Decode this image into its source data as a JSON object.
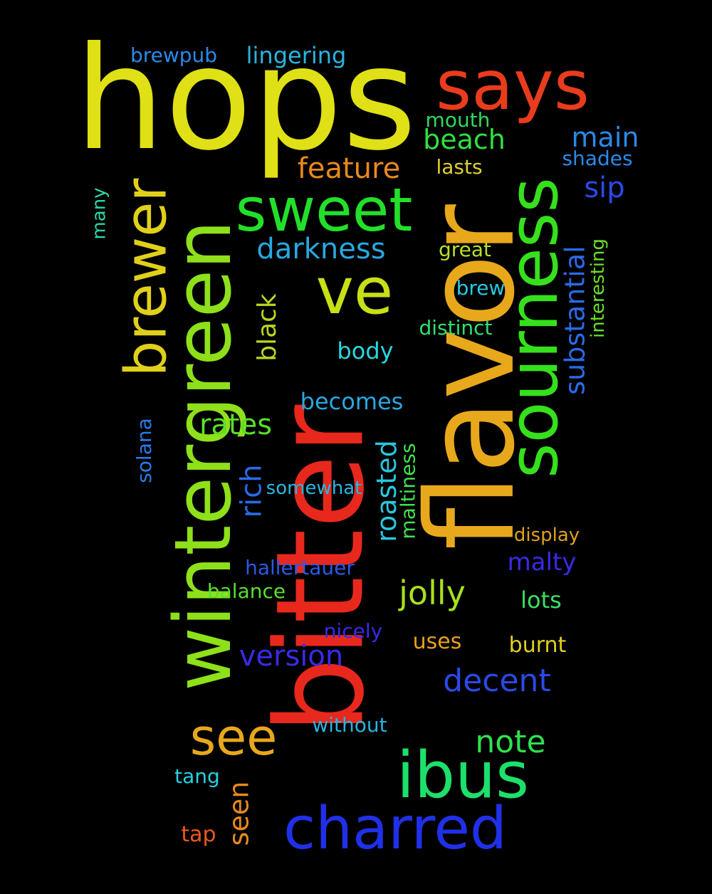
{
  "words": [
    {
      "id": "hops",
      "text": "hops",
      "color": "#e0e016",
      "rotated": false
    },
    {
      "id": "says",
      "text": "says",
      "color": "#e83c1c",
      "rotated": false
    },
    {
      "id": "flavor",
      "text": "flavor",
      "color": "#e8a81c",
      "rotated": true
    },
    {
      "id": "bitter",
      "text": "bitter",
      "color": "#e8281c",
      "rotated": true
    },
    {
      "id": "wintergreen",
      "text": "wintergreen",
      "color": "#8ee01a",
      "rotated": true
    },
    {
      "id": "sourness",
      "text": "sourness",
      "color": "#36e01c",
      "rotated": true
    },
    {
      "id": "brewer",
      "text": "brewer",
      "color": "#e0d01a",
      "rotated": true
    },
    {
      "id": "sweet",
      "text": "sweet",
      "color": "#22e02a",
      "rotated": false
    },
    {
      "id": "ve",
      "text": "ve",
      "color": "#c8e016",
      "rotated": false
    },
    {
      "id": "ibus",
      "text": "ibus",
      "color": "#1ce06a",
      "rotated": false
    },
    {
      "id": "charred",
      "text": "charred",
      "color": "#2030e8",
      "rotated": false
    },
    {
      "id": "see",
      "text": "see",
      "color": "#e8a81c",
      "rotated": false
    },
    {
      "id": "feature",
      "text": "feature",
      "color": "#e88a1c",
      "rotated": false
    },
    {
      "id": "beach",
      "text": "beach",
      "color": "#30e040",
      "rotated": false
    },
    {
      "id": "main",
      "text": "main",
      "color": "#2a8ae8",
      "rotated": false
    },
    {
      "id": "darkness",
      "text": "darkness",
      "color": "#28a8e0",
      "rotated": false
    },
    {
      "id": "substantial",
      "text": "substantial",
      "color": "#2a6ae8",
      "rotated": true
    },
    {
      "id": "interesting",
      "text": "interesting",
      "color": "#6ae028",
      "rotated": true
    },
    {
      "id": "brewpub",
      "text": "brewpub",
      "color": "#2a8ae8",
      "rotated": false
    },
    {
      "id": "lingering",
      "text": "lingering",
      "color": "#2ab4e0",
      "rotated": false
    },
    {
      "id": "mouth",
      "text": "mouth",
      "color": "#30d860",
      "rotated": false
    },
    {
      "id": "lasts",
      "text": "lasts",
      "color": "#e0d030",
      "rotated": false
    },
    {
      "id": "shades",
      "text": "shades",
      "color": "#2a8ae8",
      "rotated": false
    },
    {
      "id": "sip",
      "text": "sip",
      "color": "#2a4ae8",
      "rotated": false
    },
    {
      "id": "many",
      "text": "many",
      "color": "#2ad8a8",
      "rotated": true
    },
    {
      "id": "great",
      "text": "great",
      "color": "#b8e028",
      "rotated": false
    },
    {
      "id": "brew",
      "text": "brew",
      "color": "#28c8e0",
      "rotated": false
    },
    {
      "id": "black",
      "text": "black",
      "color": "#b8d820",
      "rotated": true
    },
    {
      "id": "distinct",
      "text": "distinct",
      "color": "#30e070",
      "rotated": false
    },
    {
      "id": "body",
      "text": "body",
      "color": "#28d8e0",
      "rotated": false
    },
    {
      "id": "becomes",
      "text": "becomes",
      "color": "#28a8e0",
      "rotated": false
    },
    {
      "id": "rates",
      "text": "rates",
      "color": "#58e028",
      "rotated": false
    },
    {
      "id": "solana",
      "text": "solana",
      "color": "#2a7ae8",
      "rotated": true
    },
    {
      "id": "rich",
      "text": "rich",
      "color": "#2a6ae8",
      "rotated": true
    },
    {
      "id": "roasted",
      "text": "roasted",
      "color": "#28c8e0",
      "rotated": true
    },
    {
      "id": "maltiness",
      "text": "maltiness",
      "color": "#40e050",
      "rotated": true
    },
    {
      "id": "somewhat",
      "text": "somewhat",
      "color": "#28b8e0",
      "rotated": false
    },
    {
      "id": "display",
      "text": "display",
      "color": "#e0a020",
      "rotated": false
    },
    {
      "id": "malty",
      "text": "malty",
      "color": "#3a2ae8",
      "rotated": false
    },
    {
      "id": "hallertauer",
      "text": "hallertauer",
      "color": "#2a5ae8",
      "rotated": false
    },
    {
      "id": "jolly",
      "text": "jolly",
      "color": "#a8e020",
      "rotated": false
    },
    {
      "id": "balance",
      "text": "balance",
      "color": "#58e030",
      "rotated": false
    },
    {
      "id": "lots",
      "text": "lots",
      "color": "#38e060",
      "rotated": false
    },
    {
      "id": "nicely",
      "text": "nicely",
      "color": "#3a2ae8",
      "rotated": false
    },
    {
      "id": "uses",
      "text": "uses",
      "color": "#e8a020",
      "rotated": false
    },
    {
      "id": "burnt",
      "text": "burnt",
      "color": "#e0d020",
      "rotated": false
    },
    {
      "id": "version",
      "text": "version",
      "color": "#3a2ae8",
      "rotated": false
    },
    {
      "id": "decent",
      "text": "decent",
      "color": "#2a4ae8",
      "rotated": false
    },
    {
      "id": "without",
      "text": "without",
      "color": "#2ab4e0",
      "rotated": false
    },
    {
      "id": "note",
      "text": "note",
      "color": "#30e050",
      "rotated": false
    },
    {
      "id": "tang",
      "text": "tang",
      "color": "#28d0e0",
      "rotated": false
    },
    {
      "id": "seen",
      "text": "seen",
      "color": "#e88a1c",
      "rotated": true
    },
    {
      "id": "tap",
      "text": "tap",
      "color": "#e85a1c",
      "rotated": false
    }
  ]
}
